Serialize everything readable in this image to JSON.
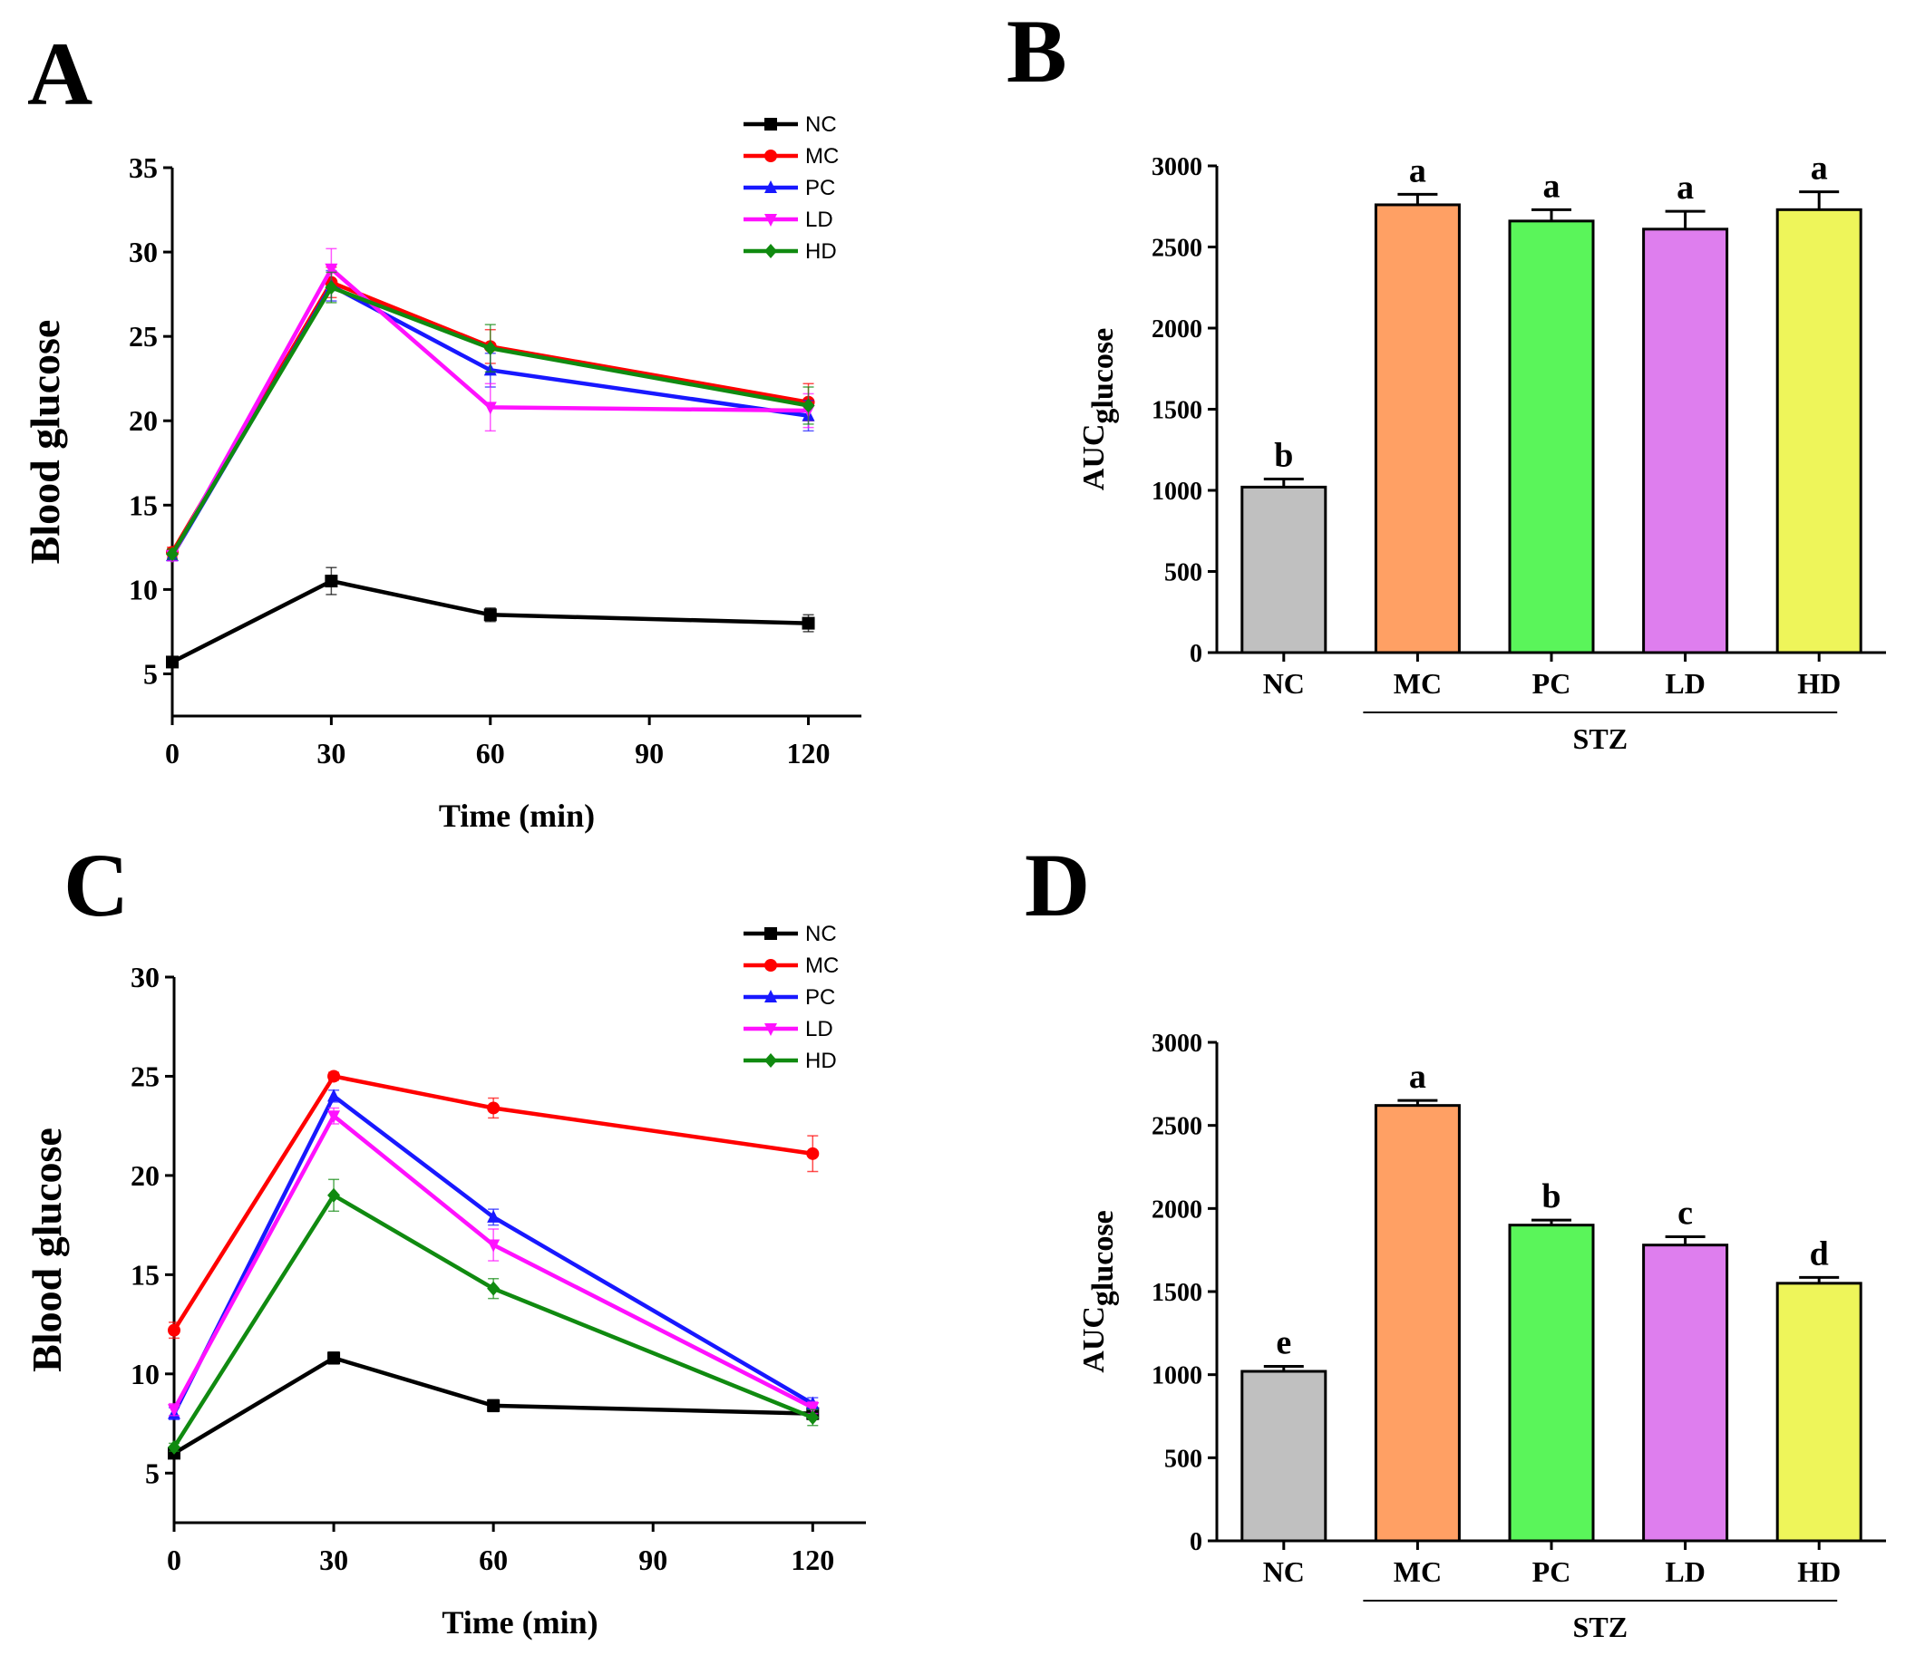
{
  "chart_data": [
    {
      "panel": "A",
      "type": "line",
      "xlabel": "Time (min)",
      "ylabel": "Blood glucose",
      "xlim": [
        0,
        130
      ],
      "ylim": [
        2.5,
        35
      ],
      "xticks": [
        0,
        30,
        60,
        90,
        120
      ],
      "yticks": [
        5,
        10,
        15,
        20,
        25,
        30,
        35
      ],
      "x": [
        0,
        30,
        60,
        120
      ],
      "series": [
        {
          "name": "NC",
          "color": "#000000",
          "marker": "square",
          "values": [
            5.7,
            10.5,
            8.5,
            8.0
          ],
          "errors": [
            0.3,
            0.8,
            0.4,
            0.5
          ]
        },
        {
          "name": "MC",
          "color": "#ff0000",
          "marker": "circle",
          "values": [
            12.2,
            28.2,
            24.4,
            21.1
          ],
          "errors": [
            0.3,
            0.9,
            1.0,
            1.1
          ]
        },
        {
          "name": "PC",
          "color": "#1818ff",
          "marker": "triangle-up",
          "values": [
            12.0,
            28.0,
            23.0,
            20.3
          ],
          "errors": [
            0.3,
            0.9,
            1.0,
            0.9
          ]
        },
        {
          "name": "LD",
          "color": "#ff11ff",
          "marker": "triangle-down",
          "values": [
            12.0,
            29.0,
            20.8,
            20.6
          ],
          "errors": [
            0.3,
            1.2,
            1.4,
            1.0
          ]
        },
        {
          "name": "HD",
          "color": "#108a10",
          "marker": "diamond",
          "values": [
            12.1,
            27.9,
            24.3,
            20.9
          ],
          "errors": [
            0.3,
            0.9,
            1.4,
            1.1
          ]
        }
      ]
    },
    {
      "panel": "B",
      "type": "bar",
      "ylabel": "AUC",
      "ylabel_subscript": "glucose",
      "ylim": [
        0,
        3000
      ],
      "yticks": [
        0,
        500,
        1000,
        1500,
        2000,
        2500,
        3000
      ],
      "categories": [
        "NC",
        "MC",
        "PC",
        "LD",
        "HD"
      ],
      "values": [
        1020,
        2760,
        2660,
        2610,
        2730
      ],
      "errors": [
        50,
        65,
        70,
        110,
        110
      ],
      "letters": [
        "b",
        "a",
        "a",
        "a",
        "a"
      ],
      "colors": [
        "#c0c0c0",
        "#ffa064",
        "#5af55a",
        "#de7eee",
        "#eef55a"
      ],
      "group_label": "STZ"
    },
    {
      "panel": "C",
      "type": "line",
      "xlabel": "Time (min)",
      "ylabel": "Blood glucose",
      "xlim": [
        0,
        130
      ],
      "ylim": [
        2.5,
        30
      ],
      "xticks": [
        0,
        30,
        60,
        90,
        120
      ],
      "yticks": [
        5,
        10,
        15,
        20,
        25,
        30
      ],
      "x": [
        0,
        30,
        60,
        120
      ],
      "series": [
        {
          "name": "NC",
          "color": "#000000",
          "marker": "square",
          "values": [
            6.0,
            10.8,
            8.4,
            8.0
          ],
          "errors": [
            0.2,
            0.3,
            0.3,
            0.3
          ]
        },
        {
          "name": "MC",
          "color": "#ff0000",
          "marker": "circle",
          "values": [
            12.2,
            25.0,
            23.4,
            21.1
          ],
          "errors": [
            0.4,
            0.2,
            0.5,
            0.9
          ]
        },
        {
          "name": "PC",
          "color": "#1818ff",
          "marker": "triangle-up",
          "values": [
            8.0,
            24.0,
            17.9,
            8.5
          ],
          "errors": [
            0.3,
            0.3,
            0.4,
            0.3
          ]
        },
        {
          "name": "LD",
          "color": "#ff11ff",
          "marker": "triangle-down",
          "values": [
            8.2,
            23.0,
            16.5,
            8.3
          ],
          "errors": [
            0.3,
            0.4,
            0.8,
            0.3
          ]
        },
        {
          "name": "HD",
          "color": "#108a10",
          "marker": "diamond",
          "values": [
            6.3,
            19.0,
            14.3,
            7.8
          ],
          "errors": [
            0.2,
            0.8,
            0.5,
            0.4
          ]
        }
      ]
    },
    {
      "panel": "D",
      "type": "bar",
      "ylabel": "AUC",
      "ylabel_subscript": "glucose",
      "ylim": [
        0,
        3000
      ],
      "yticks": [
        0,
        500,
        1000,
        1500,
        2000,
        2500,
        3000
      ],
      "categories": [
        "NC",
        "MC",
        "PC",
        "LD",
        "HD"
      ],
      "values": [
        1020,
        2620,
        1900,
        1780,
        1550
      ],
      "errors": [
        30,
        30,
        30,
        50,
        35
      ],
      "letters": [
        "e",
        "a",
        "b",
        "c",
        "d"
      ],
      "colors": [
        "#c0c0c0",
        "#ffa064",
        "#5af55a",
        "#de7eee",
        "#eef55a"
      ],
      "group_label": "STZ"
    }
  ]
}
